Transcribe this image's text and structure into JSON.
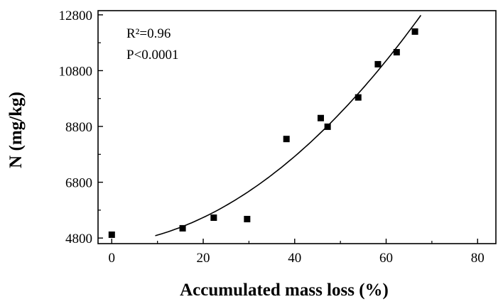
{
  "chart_data": {
    "type": "scatter",
    "xlabel": "Accumulated mass loss (%)",
    "ylabel": "N (mg/kg)",
    "xlim": [
      -3,
      84
    ],
    "ylim": [
      4600,
      12950
    ],
    "x_ticks": [
      0,
      20,
      40,
      60,
      80
    ],
    "y_ticks": [
      4800,
      6800,
      8800,
      10800,
      12800
    ],
    "grid": false,
    "annotations": [
      "R²=0.96",
      "P<0.0001"
    ],
    "points": [
      {
        "x": 0,
        "y": 4920
      },
      {
        "x": 15.5,
        "y": 5150
      },
      {
        "x": 22.3,
        "y": 5530
      },
      {
        "x": 29.6,
        "y": 5480
      },
      {
        "x": 38.2,
        "y": 8350
      },
      {
        "x": 45.7,
        "y": 9100
      },
      {
        "x": 47.2,
        "y": 8790
      },
      {
        "x": 53.9,
        "y": 9840
      },
      {
        "x": 58.2,
        "y": 11030
      },
      {
        "x": 62.3,
        "y": 11460
      },
      {
        "x": 66.3,
        "y": 12200
      }
    ],
    "fit_curve": {
      "x_range": [
        9.5,
        67.6
      ],
      "coefficients": [
        4587,
        16.5,
        1.55
      ]
    }
  }
}
